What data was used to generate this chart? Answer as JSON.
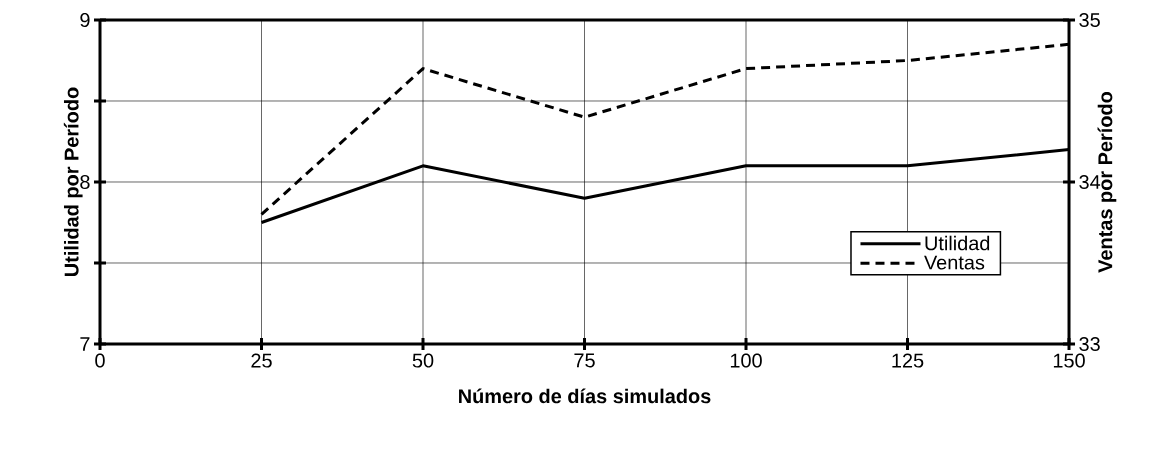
{
  "chart_data": {
    "type": "line",
    "xlabel": "Número de días simulados",
    "ylabel": "Utilidad por Período",
    "y2label": "Ventas por Período",
    "x": [
      25,
      50,
      75,
      100,
      125,
      150
    ],
    "series": [
      {
        "name": "Utilidad",
        "color": "#000000",
        "line_style": "solid",
        "values": [
          7.75,
          8.1,
          7.9,
          8.1,
          8.1,
          8.2
        ]
      },
      {
        "name": "Ventas",
        "color": "#000000",
        "line_style": "dashed",
        "axis": "y2",
        "values": [
          33.8,
          34.7,
          34.4,
          34.7,
          34.75,
          34.85
        ]
      }
    ],
    "xlim": [
      0,
      150
    ],
    "xticks": [
      0,
      25,
      50,
      75,
      100,
      125,
      150
    ],
    "ylim": [
      7,
      9
    ],
    "yticks": [
      7,
      {
        "value": 7.5,
        "label": null
      },
      8,
      {
        "value": 8.5,
        "label": null
      },
      9
    ],
    "y2lim": [
      33,
      35
    ],
    "y2ticks": [
      33,
      34,
      35
    ],
    "grid": true,
    "legend": "right",
    "marker": "none"
  }
}
